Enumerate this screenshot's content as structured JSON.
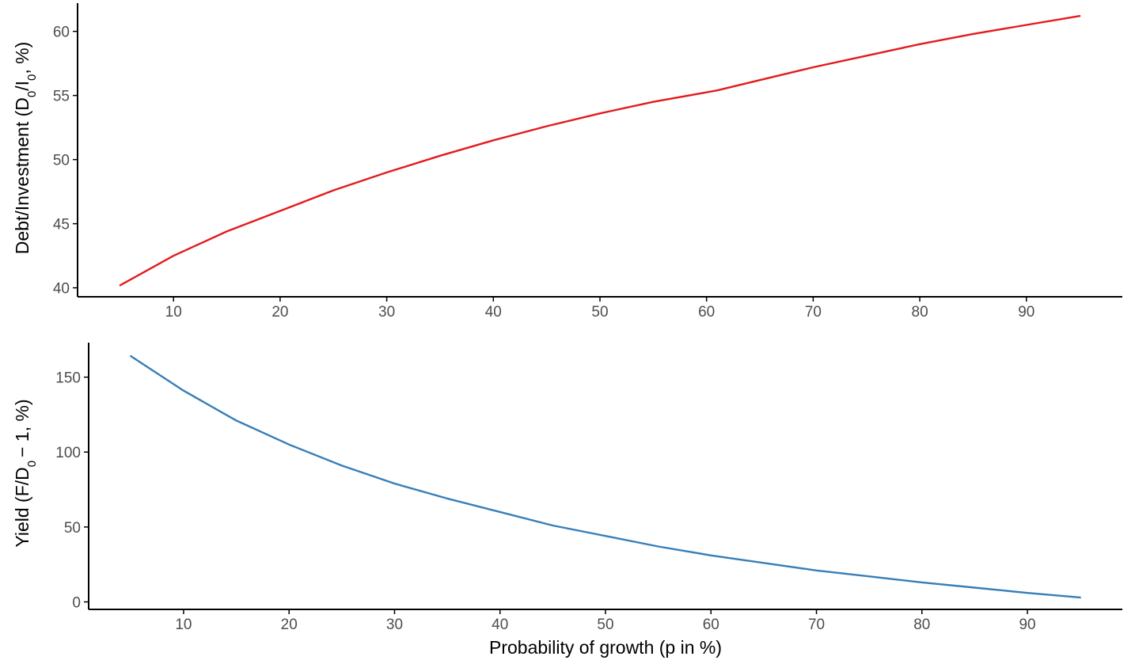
{
  "chart_data": [
    {
      "type": "line",
      "title": "",
      "xlabel": "",
      "ylabel": {
        "prefix": "Debt/Investment (D",
        "sub1": "0",
        "mid": "/I",
        "sub2": "0",
        "suffix": ", %)"
      },
      "xlim": [
        1,
        99
      ],
      "ylim": [
        39.3,
        62.2
      ],
      "xticks": [
        10,
        20,
        30,
        40,
        50,
        60,
        70,
        80,
        90
      ],
      "yticks": [
        40,
        45,
        50,
        55,
        60
      ],
      "grid": false,
      "series": [
        {
          "color": "#e41a1c",
          "x": [
            5,
            10,
            15,
            20,
            25,
            30,
            35,
            40,
            45,
            50,
            55,
            61,
            65,
            70,
            75,
            80,
            85,
            90,
            95
          ],
          "y": [
            40.2,
            42.5,
            44.4,
            46.0,
            47.6,
            49.0,
            50.3,
            51.5,
            52.6,
            53.6,
            54.5,
            55.4,
            56.2,
            57.2,
            58.1,
            59.0,
            59.8,
            60.5,
            61.2
          ]
        }
      ]
    },
    {
      "type": "line",
      "title": "",
      "xlabel": "Probability of growth (p in %)",
      "ylabel": {
        "prefix": "Yield (F/D",
        "sub1": "0",
        "suffix": "− 1, %)"
      },
      "xlim": [
        1,
        99
      ],
      "ylim": [
        -5,
        173
      ],
      "xticks": [
        10,
        20,
        30,
        40,
        50,
        60,
        70,
        80,
        90
      ],
      "yticks": [
        0,
        50,
        100,
        150
      ],
      "grid": false,
      "series": [
        {
          "color": "#377eb8",
          "x": [
            5,
            10,
            15,
            20,
            25,
            30,
            35,
            40,
            45,
            50,
            55,
            60,
            65,
            70,
            75,
            80,
            85,
            90,
            95
          ],
          "y": [
            164,
            141,
            121,
            105,
            91,
            79,
            69,
            60,
            51,
            44,
            37,
            31,
            26,
            21,
            17,
            13,
            9.5,
            6,
            3
          ]
        }
      ]
    }
  ]
}
